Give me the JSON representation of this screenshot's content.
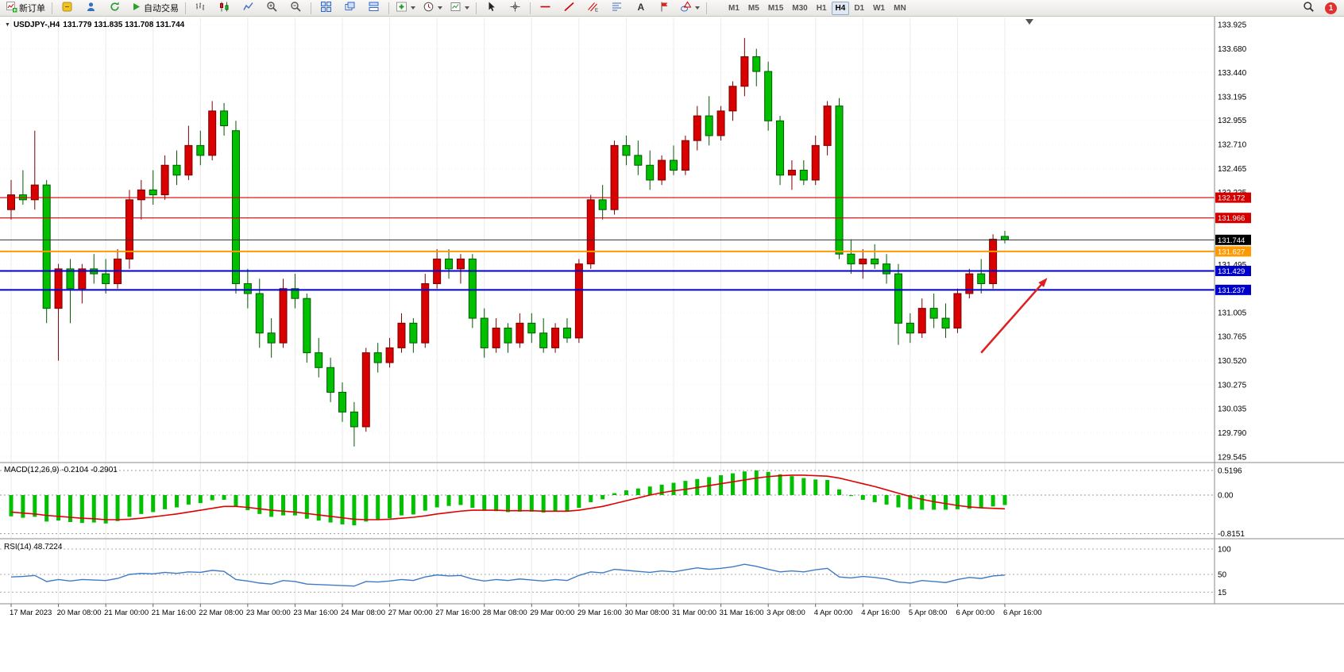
{
  "toolbar": {
    "new_order": "新订单",
    "autotrading": "自动交易",
    "timeframes": [
      "M1",
      "M5",
      "M15",
      "M30",
      "H1",
      "H4",
      "D1",
      "W1",
      "MN"
    ],
    "active_timeframe": "H4",
    "notification_count": "1"
  },
  "chart_header": {
    "symbol_timeframe": "USDJPY-,H4",
    "ohlc": "131.779 131.835 131.708 131.744",
    "collapse_icon": "▼"
  },
  "chart_data": {
    "type": "candlestick",
    "symbol": "USDJPY-",
    "timeframe": "H4",
    "price_axis": {
      "min": 129.545,
      "max": 133.925
    },
    "grid": true,
    "up_color": "#D80000",
    "up_edge": "#7A0000",
    "down_color": "#00C000",
    "down_edge": "#005A00",
    "price_axis_labels": [
      "133.925",
      "133.680",
      "133.440",
      "133.195",
      "132.955",
      "132.710",
      "132.465",
      "132.225",
      "131.495",
      "131.005",
      "130.765",
      "130.520",
      "130.275",
      "130.035",
      "129.790",
      "129.545"
    ],
    "time_axis_labels": [
      "17 Mar 2023",
      "20 Mar 08:00",
      "21 Mar 00:00",
      "21 Mar 16:00",
      "22 Mar 08:00",
      "23 Mar 00:00",
      "23 Mar 16:00",
      "24 Mar 08:00",
      "27 Mar 00:00",
      "27 Mar 16:00",
      "28 Mar 08:00",
      "29 Mar 00:00",
      "29 Mar 16:00",
      "30 Mar 08:00",
      "31 Mar 00:00",
      "31 Mar 16:00",
      "3 Apr 08:00",
      "4 Apr 00:00",
      "4 Apr 16:00",
      "5 Apr 08:00",
      "6 Apr 00:00",
      "6 Apr 16:00"
    ],
    "time_label_every": 4,
    "candles": [
      [
        132.05,
        132.35,
        131.95,
        132.2
      ],
      [
        132.2,
        132.45,
        132.1,
        132.15
      ],
      [
        132.15,
        132.85,
        132.05,
        132.3
      ],
      [
        132.3,
        132.35,
        130.9,
        131.05
      ],
      [
        131.05,
        131.5,
        130.52,
        131.45
      ],
      [
        131.45,
        131.55,
        130.9,
        131.25
      ],
      [
        131.25,
        131.5,
        131.1,
        131.45
      ],
      [
        131.45,
        131.6,
        131.3,
        131.4
      ],
      [
        131.4,
        131.55,
        131.2,
        131.3
      ],
      [
        131.3,
        131.65,
        131.25,
        131.55
      ],
      [
        131.55,
        132.25,
        131.45,
        132.15
      ],
      [
        132.15,
        132.35,
        131.95,
        132.25
      ],
      [
        132.25,
        132.45,
        132.1,
        132.2
      ],
      [
        132.2,
        132.6,
        132.15,
        132.5
      ],
      [
        132.5,
        132.65,
        132.3,
        132.4
      ],
      [
        132.4,
        132.9,
        132.35,
        132.7
      ],
      [
        132.7,
        132.85,
        132.5,
        132.6
      ],
      [
        132.6,
        133.15,
        132.55,
        133.05
      ],
      [
        133.05,
        133.13,
        132.8,
        132.9
      ],
      [
        132.85,
        132.95,
        131.2,
        131.3
      ],
      [
        131.3,
        131.45,
        131.05,
        131.2
      ],
      [
        131.2,
        131.35,
        130.65,
        130.8
      ],
      [
        130.8,
        130.95,
        130.55,
        130.7
      ],
      [
        130.7,
        131.35,
        130.65,
        131.25
      ],
      [
        131.25,
        131.4,
        131.05,
        131.15
      ],
      [
        131.15,
        131.2,
        130.5,
        130.6
      ],
      [
        130.6,
        130.75,
        130.35,
        130.45
      ],
      [
        130.45,
        130.55,
        130.1,
        130.2
      ],
      [
        130.2,
        130.3,
        129.9,
        130.0
      ],
      [
        130.0,
        130.1,
        129.65,
        129.85
      ],
      [
        129.85,
        130.65,
        129.8,
        130.6
      ],
      [
        130.6,
        130.7,
        130.4,
        130.5
      ],
      [
        130.5,
        130.75,
        130.45,
        130.65
      ],
      [
        130.65,
        131.0,
        130.6,
        130.9
      ],
      [
        130.9,
        130.95,
        130.6,
        130.7
      ],
      [
        130.7,
        131.4,
        130.65,
        131.3
      ],
      [
        131.3,
        131.65,
        131.25,
        131.55
      ],
      [
        131.55,
        131.65,
        131.35,
        131.45
      ],
      [
        131.45,
        131.6,
        131.3,
        131.55
      ],
      [
        131.55,
        131.6,
        130.85,
        130.95
      ],
      [
        130.95,
        131.05,
        130.55,
        130.65
      ],
      [
        130.65,
        130.95,
        130.6,
        130.85
      ],
      [
        130.85,
        130.9,
        130.6,
        130.7
      ],
      [
        130.7,
        131.0,
        130.65,
        130.9
      ],
      [
        130.9,
        131.0,
        130.7,
        130.8
      ],
      [
        130.8,
        130.95,
        130.6,
        130.65
      ],
      [
        130.65,
        130.9,
        130.6,
        130.85
      ],
      [
        130.85,
        130.95,
        130.7,
        130.75
      ],
      [
        130.75,
        131.55,
        130.7,
        131.5
      ],
      [
        131.5,
        132.2,
        131.45,
        132.15
      ],
      [
        132.15,
        132.3,
        131.95,
        132.05
      ],
      [
        132.05,
        132.75,
        132.0,
        132.7
      ],
      [
        132.7,
        132.8,
        132.5,
        132.6
      ],
      [
        132.6,
        132.75,
        132.4,
        132.5
      ],
      [
        132.5,
        132.65,
        132.25,
        132.35
      ],
      [
        132.35,
        132.6,
        132.3,
        132.55
      ],
      [
        132.55,
        132.7,
        132.4,
        132.45
      ],
      [
        132.45,
        132.8,
        132.4,
        132.75
      ],
      [
        132.75,
        133.1,
        132.65,
        133.0
      ],
      [
        133.0,
        133.2,
        132.7,
        132.8
      ],
      [
        132.8,
        133.1,
        132.75,
        133.05
      ],
      [
        133.05,
        133.35,
        132.95,
        133.3
      ],
      [
        133.3,
        133.79,
        133.2,
        133.6
      ],
      [
        133.6,
        133.68,
        133.3,
        133.45
      ],
      [
        133.45,
        133.55,
        132.85,
        132.95
      ],
      [
        132.95,
        133.0,
        132.3,
        132.4
      ],
      [
        132.4,
        132.55,
        132.25,
        132.45
      ],
      [
        132.45,
        132.55,
        132.3,
        132.35
      ],
      [
        132.35,
        132.8,
        132.3,
        132.7
      ],
      [
        132.7,
        133.15,
        132.6,
        133.1
      ],
      [
        133.1,
        133.18,
        131.55,
        131.6
      ],
      [
        131.6,
        131.75,
        131.4,
        131.5
      ],
      [
        131.5,
        131.65,
        131.35,
        131.55
      ],
      [
        131.55,
        131.7,
        131.45,
        131.5
      ],
      [
        131.5,
        131.6,
        131.3,
        131.4
      ],
      [
        131.4,
        131.5,
        130.68,
        130.9
      ],
      [
        130.9,
        131.0,
        130.7,
        130.8
      ],
      [
        130.8,
        131.15,
        130.75,
        131.05
      ],
      [
        131.05,
        131.2,
        130.85,
        130.95
      ],
      [
        130.95,
        131.1,
        130.75,
        130.85
      ],
      [
        130.85,
        131.25,
        130.8,
        131.2
      ],
      [
        131.2,
        131.45,
        131.15,
        131.4
      ],
      [
        131.4,
        131.55,
        131.2,
        131.3
      ],
      [
        131.3,
        131.8,
        131.25,
        131.75
      ],
      [
        131.779,
        131.835,
        131.708,
        131.744
      ]
    ],
    "current_price": 131.744,
    "hlines": [
      {
        "price": 132.172,
        "color": "#D40000",
        "width": 1.2,
        "badge": "132.172",
        "badge_bg": "#D40000"
      },
      {
        "price": 131.966,
        "color": "#D40000",
        "width": 1.2,
        "badge": "131.966",
        "badge_bg": "#D40000"
      },
      {
        "price": 131.744,
        "color": "#303030",
        "width": 1,
        "badge": "131.744",
        "badge_bg": "#000000"
      },
      {
        "price": 131.627,
        "color": "#FF9900",
        "width": 2,
        "badge": "131.627",
        "badge_bg": "#FF9900"
      },
      {
        "price": 131.429,
        "color": "#0000CC",
        "width": 2,
        "badge": "131.429",
        "badge_bg": "#0000CC"
      },
      {
        "price": 131.237,
        "color": "#0000CC",
        "width": 2,
        "badge": "131.237",
        "badge_bg": "#0000CC"
      }
    ],
    "annotations": [
      {
        "type": "arrow",
        "from": {
          "bar": 82.0,
          "price": 130.6
        },
        "to": {
          "bar": 87.6,
          "price": 131.36
        },
        "color": "#E02020"
      }
    ],
    "macd": {
      "label": "MACD(12,26,9)",
      "values_text": "-0.2104 -0.2901",
      "macd_value": -0.2104,
      "signal_value": -0.2901,
      "scale_labels": [
        "0.5196",
        "0.00",
        "-0.8151"
      ],
      "scale_levels": [
        0.5196,
        0,
        -0.8151
      ],
      "hist_color": "#00C000",
      "signal_color": "#E00000",
      "histogram": [
        -0.45,
        -0.48,
        -0.46,
        -0.56,
        -0.54,
        -0.57,
        -0.59,
        -0.58,
        -0.6,
        -0.55,
        -0.46,
        -0.4,
        -0.36,
        -0.3,
        -0.26,
        -0.2,
        -0.17,
        -0.11,
        -0.1,
        -0.24,
        -0.32,
        -0.4,
        -0.46,
        -0.43,
        -0.43,
        -0.5,
        -0.54,
        -0.58,
        -0.62,
        -0.64,
        -0.56,
        -0.53,
        -0.49,
        -0.43,
        -0.41,
        -0.33,
        -0.26,
        -0.23,
        -0.21,
        -0.27,
        -0.33,
        -0.34,
        -0.36,
        -0.35,
        -0.35,
        -0.37,
        -0.35,
        -0.35,
        -0.27,
        -0.15,
        -0.09,
        0.04,
        0.1,
        0.14,
        0.18,
        0.22,
        0.26,
        0.3,
        0.34,
        0.38,
        0.42,
        0.46,
        0.5,
        0.52,
        0.49,
        0.44,
        0.4,
        0.36,
        0.33,
        0.32,
        0.12,
        -0.02,
        -0.1,
        -0.15,
        -0.2,
        -0.26,
        -0.3,
        -0.31,
        -0.31,
        -0.31,
        -0.3,
        -0.29,
        -0.27,
        -0.24,
        -0.2104
      ],
      "signal": [
        -0.36,
        -0.38,
        -0.4,
        -0.43,
        -0.45,
        -0.47,
        -0.49,
        -0.5,
        -0.52,
        -0.52,
        -0.51,
        -0.49,
        -0.46,
        -0.43,
        -0.4,
        -0.36,
        -0.32,
        -0.28,
        -0.24,
        -0.24,
        -0.26,
        -0.29,
        -0.32,
        -0.34,
        -0.36,
        -0.39,
        -0.42,
        -0.45,
        -0.48,
        -0.51,
        -0.52,
        -0.52,
        -0.51,
        -0.49,
        -0.47,
        -0.44,
        -0.4,
        -0.37,
        -0.34,
        -0.32,
        -0.32,
        -0.32,
        -0.33,
        -0.33,
        -0.33,
        -0.34,
        -0.34,
        -0.34,
        -0.32,
        -0.28,
        -0.24,
        -0.18,
        -0.12,
        -0.06,
        0.0,
        0.05,
        0.09,
        0.12,
        0.16,
        0.2,
        0.24,
        0.28,
        0.32,
        0.36,
        0.39,
        0.41,
        0.42,
        0.42,
        0.41,
        0.4,
        0.36,
        0.3,
        0.24,
        0.18,
        0.11,
        0.04,
        -0.03,
        -0.09,
        -0.14,
        -0.18,
        -0.22,
        -0.25,
        -0.27,
        -0.28,
        -0.2901
      ]
    },
    "rsi": {
      "label": "RSI(14)",
      "value_text": "48.7224",
      "value": 48.7224,
      "period": 14,
      "scale_labels": [
        "100",
        "50",
        "15"
      ],
      "scale_levels": [
        100,
        50,
        15
      ],
      "color": "#3E7BC4",
      "values": [
        45,
        46,
        48,
        36,
        40,
        37,
        40,
        39,
        38,
        42,
        50,
        52,
        51,
        54,
        52,
        55,
        54,
        58,
        56,
        40,
        37,
        33,
        31,
        38,
        36,
        31,
        30,
        29,
        28,
        27,
        36,
        35,
        37,
        40,
        38,
        45,
        49,
        47,
        48,
        41,
        37,
        40,
        38,
        41,
        39,
        37,
        40,
        38,
        48,
        55,
        53,
        60,
        58,
        56,
        54,
        57,
        55,
        59,
        63,
        60,
        62,
        65,
        70,
        66,
        60,
        55,
        57,
        55,
        59,
        62,
        45,
        43,
        46,
        44,
        41,
        35,
        33,
        38,
        36,
        34,
        40,
        44,
        42,
        47,
        48.7224
      ]
    }
  }
}
